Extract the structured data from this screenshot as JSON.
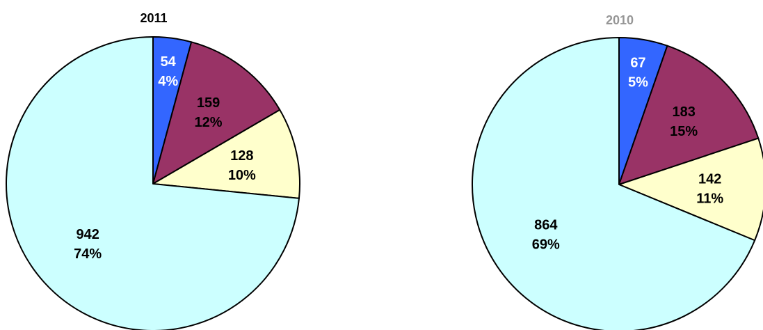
{
  "chart_data": [
    {
      "type": "pie",
      "title": "2011",
      "title_color": "#000000",
      "start_angle": "12 o'clock",
      "direction": "clockwise",
      "legend": "none",
      "slices": [
        {
          "value": 54,
          "label": "54",
          "percent": "4%",
          "color": "#3366ff",
          "label_color": "#ffffff"
        },
        {
          "value": 159,
          "label": "159",
          "percent": "12%",
          "color": "#993366",
          "label_color": "#000000"
        },
        {
          "value": 128,
          "label": "128",
          "percent": "10%",
          "color": "#ffffcc",
          "label_color": "#000000"
        },
        {
          "value": 942,
          "label": "942",
          "percent": "74%",
          "color": "#ccffff",
          "label_color": "#000000"
        }
      ]
    },
    {
      "type": "pie",
      "title": "2010",
      "title_color": "#969696",
      "start_angle": "12 o'clock",
      "direction": "clockwise",
      "legend": "none",
      "slices": [
        {
          "value": 67,
          "label": "67",
          "percent": "5%",
          "color": "#3366ff",
          "label_color": "#ffffff"
        },
        {
          "value": 183,
          "label": "183",
          "percent": "15%",
          "color": "#993366",
          "label_color": "#000000"
        },
        {
          "value": 142,
          "label": "142",
          "percent": "11%",
          "color": "#ffffcc",
          "label_color": "#000000"
        },
        {
          "value": 864,
          "label": "864",
          "percent": "69%",
          "color": "#ccffff",
          "label_color": "#000000"
        }
      ]
    }
  ]
}
